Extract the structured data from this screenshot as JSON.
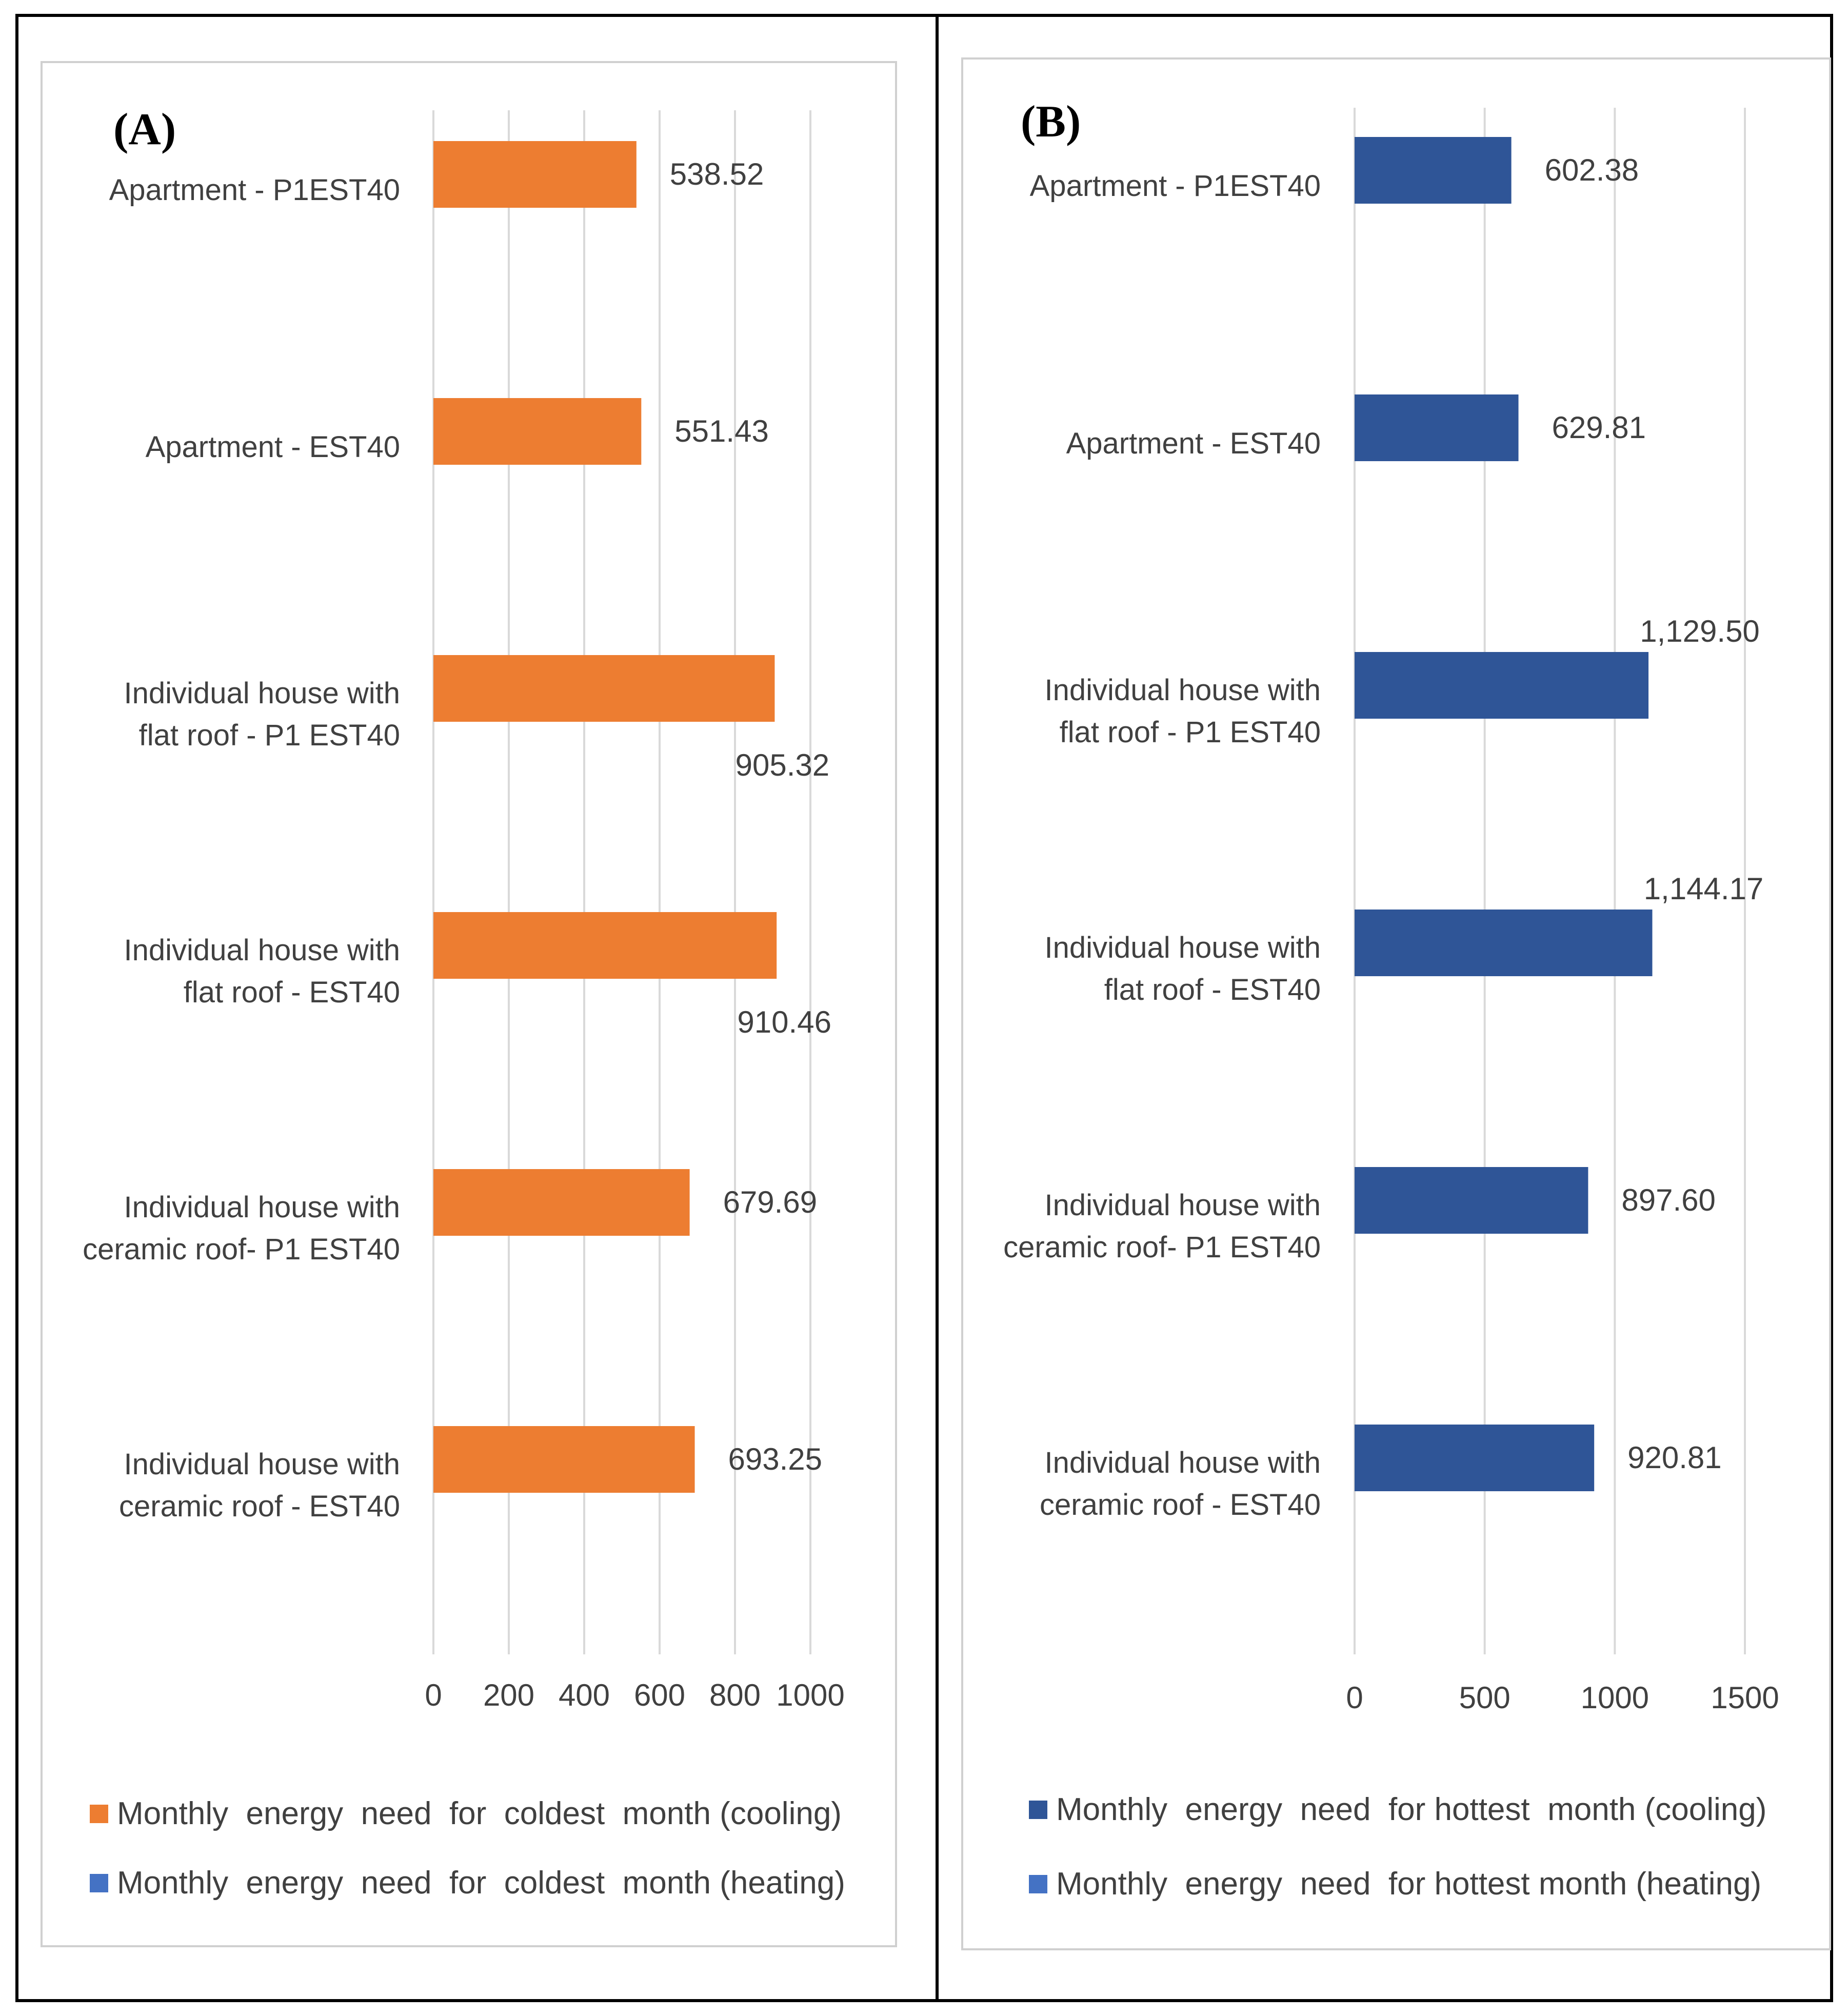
{
  "chart_data": [
    {
      "type": "bar",
      "orientation": "horizontal",
      "panel_label": "(A)",
      "categories": [
        [
          "Apartment  - P1EST40"
        ],
        [
          "Apartment  - EST40"
        ],
        [
          "Individual house with",
          "flat roof - P1 EST40"
        ],
        [
          "Individual house with",
          "flat roof - EST40"
        ],
        [
          "Individual house with",
          "ceramic roof- P1 EST40"
        ],
        [
          "Individual house with",
          "ceramic roof - EST40"
        ]
      ],
      "series": [
        {
          "name": "Monthly  energy  need  for  coldest  month (cooling)",
          "color": "#ED7D31",
          "values": [
            538.52,
            551.43,
            905.32,
            910.46,
            679.69,
            693.25
          ],
          "labels": [
            "538.52",
            "551.43",
            "905.32",
            "910.46",
            "679.69",
            "693.25"
          ]
        },
        {
          "name": "Monthly  energy  need  for  coldest  month (heating)",
          "color": "#4472C4",
          "values": [
            0,
            0,
            0,
            0,
            0,
            0
          ],
          "labels": []
        }
      ],
      "xlim": [
        0,
        1000
      ],
      "xticks": [
        0,
        200,
        400,
        600,
        800,
        1000
      ],
      "xtick_labels": [
        "0",
        "200",
        "400",
        "600",
        "800",
        "1000"
      ],
      "grid": true,
      "legend_position": "bottom"
    },
    {
      "type": "bar",
      "orientation": "horizontal",
      "panel_label": "(B)",
      "categories": [
        [
          "Apartment  - P1EST40"
        ],
        [
          "Apartment  - EST40"
        ],
        [
          "Individual house with",
          "flat roof - P1 EST40"
        ],
        [
          "Individual house with",
          "flat roof - EST40"
        ],
        [
          "Individual house with",
          "ceramic roof- P1 EST40"
        ],
        [
          "Individual house with",
          "ceramic roof - EST40"
        ]
      ],
      "series": [
        {
          "name": "Monthly  energy  need  for hottest  month (cooling)",
          "color": "#2F5597",
          "values": [
            602.38,
            629.81,
            1129.5,
            1144.17,
            897.6,
            920.81
          ],
          "labels": [
            "602.38",
            "629.81",
            "1,129.50",
            "1,144.17",
            "897.60",
            "920.81"
          ]
        },
        {
          "name": "Monthly  energy  need  for hottest month (heating)",
          "color": "#4472C4",
          "values": [
            0,
            0,
            0,
            0,
            0,
            0
          ],
          "labels": []
        }
      ],
      "xlim": [
        0,
        1500
      ],
      "xticks": [
        0,
        500,
        1000,
        1500
      ],
      "xtick_labels": [
        "0",
        "500",
        "1000",
        "1500"
      ],
      "grid": true,
      "legend_position": "bottom"
    }
  ]
}
